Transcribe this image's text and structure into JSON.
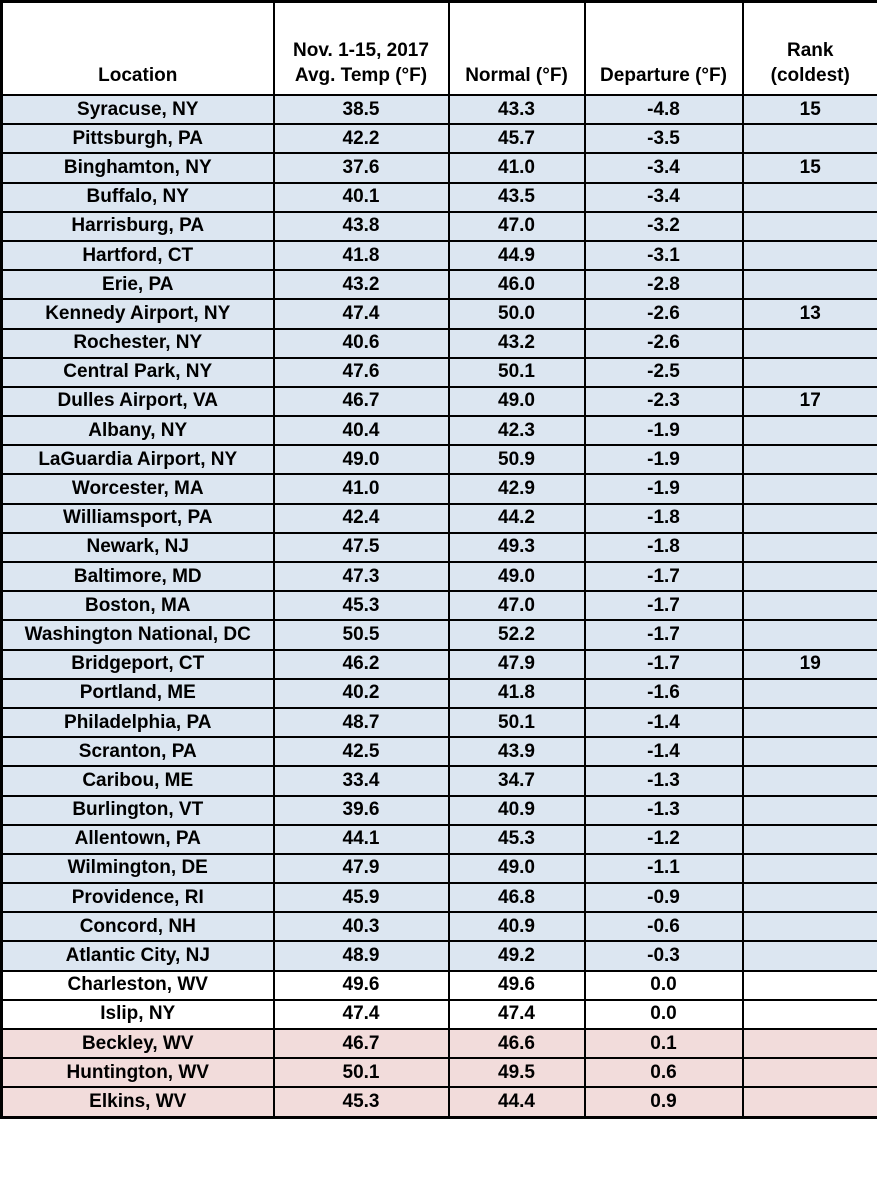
{
  "colors": {
    "below_normal_row": "#dce6f1",
    "zero_departure_row": "#ffffff",
    "above_normal_row": "#f2dcdb",
    "border": "#000000",
    "text": "#000000"
  },
  "header": {
    "location": "Location",
    "avg_temp_line1": "Nov. 1-15, 2017",
    "avg_temp_line2": "Avg. Temp (°F)",
    "normal": "Normal (°F)",
    "departure": "Departure (°F)",
    "rank_line1": "Rank",
    "rank_line2": "(coldest)"
  },
  "chart_data": {
    "type": "table",
    "columns": [
      "Location",
      "Nov. 1-15, 2017 Avg. Temp (°F)",
      "Normal (°F)",
      "Departure (°F)",
      "Rank (coldest)"
    ],
    "rows": [
      {
        "location": "Syracuse, NY",
        "avg_temp": "38.5",
        "normal": "43.3",
        "departure": "-4.8",
        "rank": "15",
        "tint": "blue"
      },
      {
        "location": "Pittsburgh, PA",
        "avg_temp": "42.2",
        "normal": "45.7",
        "departure": "-3.5",
        "rank": "",
        "tint": "blue"
      },
      {
        "location": "Binghamton, NY",
        "avg_temp": "37.6",
        "normal": "41.0",
        "departure": "-3.4",
        "rank": "15",
        "tint": "blue"
      },
      {
        "location": "Buffalo, NY",
        "avg_temp": "40.1",
        "normal": "43.5",
        "departure": "-3.4",
        "rank": "",
        "tint": "blue"
      },
      {
        "location": "Harrisburg, PA",
        "avg_temp": "43.8",
        "normal": "47.0",
        "departure": "-3.2",
        "rank": "",
        "tint": "blue"
      },
      {
        "location": "Hartford, CT",
        "avg_temp": "41.8",
        "normal": "44.9",
        "departure": "-3.1",
        "rank": "",
        "tint": "blue"
      },
      {
        "location": "Erie, PA",
        "avg_temp": "43.2",
        "normal": "46.0",
        "departure": "-2.8",
        "rank": "",
        "tint": "blue"
      },
      {
        "location": "Kennedy Airport, NY",
        "avg_temp": "47.4",
        "normal": "50.0",
        "departure": "-2.6",
        "rank": "13",
        "tint": "blue"
      },
      {
        "location": "Rochester, NY",
        "avg_temp": "40.6",
        "normal": "43.2",
        "departure": "-2.6",
        "rank": "",
        "tint": "blue"
      },
      {
        "location": "Central Park, NY",
        "avg_temp": "47.6",
        "normal": "50.1",
        "departure": "-2.5",
        "rank": "",
        "tint": "blue"
      },
      {
        "location": "Dulles Airport, VA",
        "avg_temp": "46.7",
        "normal": "49.0",
        "departure": "-2.3",
        "rank": "17",
        "tint": "blue"
      },
      {
        "location": "Albany, NY",
        "avg_temp": "40.4",
        "normal": "42.3",
        "departure": "-1.9",
        "rank": "",
        "tint": "blue"
      },
      {
        "location": "LaGuardia Airport, NY",
        "avg_temp": "49.0",
        "normal": "50.9",
        "departure": "-1.9",
        "rank": "",
        "tint": "blue"
      },
      {
        "location": "Worcester, MA",
        "avg_temp": "41.0",
        "normal": "42.9",
        "departure": "-1.9",
        "rank": "",
        "tint": "blue"
      },
      {
        "location": "Williamsport, PA",
        "avg_temp": "42.4",
        "normal": "44.2",
        "departure": "-1.8",
        "rank": "",
        "tint": "blue"
      },
      {
        "location": "Newark, NJ",
        "avg_temp": "47.5",
        "normal": "49.3",
        "departure": "-1.8",
        "rank": "",
        "tint": "blue"
      },
      {
        "location": "Baltimore, MD",
        "avg_temp": "47.3",
        "normal": "49.0",
        "departure": "-1.7",
        "rank": "",
        "tint": "blue"
      },
      {
        "location": "Boston, MA",
        "avg_temp": "45.3",
        "normal": "47.0",
        "departure": "-1.7",
        "rank": "",
        "tint": "blue"
      },
      {
        "location": "Washington National, DC",
        "avg_temp": "50.5",
        "normal": "52.2",
        "departure": "-1.7",
        "rank": "",
        "tint": "blue"
      },
      {
        "location": "Bridgeport, CT",
        "avg_temp": "46.2",
        "normal": "47.9",
        "departure": "-1.7",
        "rank": "19",
        "tint": "blue"
      },
      {
        "location": "Portland, ME",
        "avg_temp": "40.2",
        "normal": "41.8",
        "departure": "-1.6",
        "rank": "",
        "tint": "blue"
      },
      {
        "location": "Philadelphia, PA",
        "avg_temp": "48.7",
        "normal": "50.1",
        "departure": "-1.4",
        "rank": "",
        "tint": "blue"
      },
      {
        "location": "Scranton, PA",
        "avg_temp": "42.5",
        "normal": "43.9",
        "departure": "-1.4",
        "rank": "",
        "tint": "blue"
      },
      {
        "location": "Caribou, ME",
        "avg_temp": "33.4",
        "normal": "34.7",
        "departure": "-1.3",
        "rank": "",
        "tint": "blue"
      },
      {
        "location": "Burlington, VT",
        "avg_temp": "39.6",
        "normal": "40.9",
        "departure": "-1.3",
        "rank": "",
        "tint": "blue"
      },
      {
        "location": "Allentown, PA",
        "avg_temp": "44.1",
        "normal": "45.3",
        "departure": "-1.2",
        "rank": "",
        "tint": "blue"
      },
      {
        "location": "Wilmington, DE",
        "avg_temp": "47.9",
        "normal": "49.0",
        "departure": "-1.1",
        "rank": "",
        "tint": "blue"
      },
      {
        "location": "Providence, RI",
        "avg_temp": "45.9",
        "normal": "46.8",
        "departure": "-0.9",
        "rank": "",
        "tint": "blue"
      },
      {
        "location": "Concord, NH",
        "avg_temp": "40.3",
        "normal": "40.9",
        "departure": "-0.6",
        "rank": "",
        "tint": "blue"
      },
      {
        "location": "Atlantic City, NJ",
        "avg_temp": "48.9",
        "normal": "49.2",
        "departure": "-0.3",
        "rank": "",
        "tint": "blue"
      },
      {
        "location": "Charleston, WV",
        "avg_temp": "49.6",
        "normal": "49.6",
        "departure": "0.0",
        "rank": "",
        "tint": "white"
      },
      {
        "location": "Islip, NY",
        "avg_temp": "47.4",
        "normal": "47.4",
        "departure": "0.0",
        "rank": "",
        "tint": "white"
      },
      {
        "location": "Beckley, WV",
        "avg_temp": "46.7",
        "normal": "46.6",
        "departure": "0.1",
        "rank": "",
        "tint": "pink"
      },
      {
        "location": "Huntington, WV",
        "avg_temp": "50.1",
        "normal": "49.5",
        "departure": "0.6",
        "rank": "",
        "tint": "pink"
      },
      {
        "location": "Elkins, WV",
        "avg_temp": "45.3",
        "normal": "44.4",
        "departure": "0.9",
        "rank": "",
        "tint": "pink"
      }
    ]
  }
}
